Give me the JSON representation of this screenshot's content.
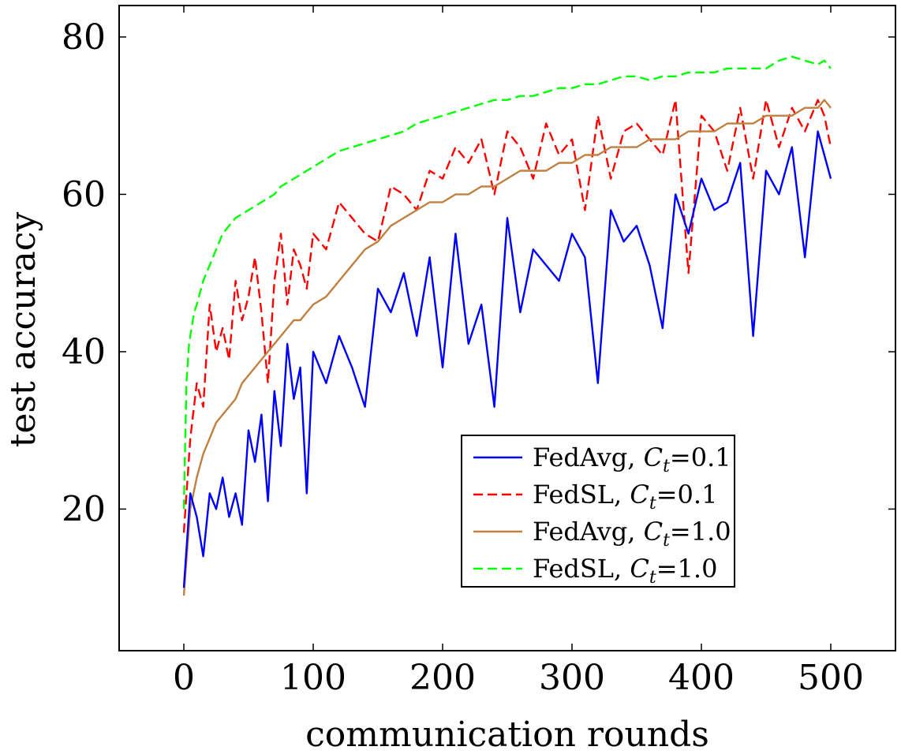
{
  "chart_data": {
    "type": "line",
    "title": "",
    "xlabel": "communication rounds",
    "ylabel": "test accuracy",
    "xlim": [
      -50,
      550
    ],
    "ylim": [
      2,
      84
    ],
    "xticks": [
      0,
      100,
      200,
      300,
      400,
      500
    ],
    "yticks": [
      20,
      40,
      60,
      80
    ],
    "legend_position": "bottom-right",
    "series": [
      {
        "name": "FedAvg, C_t=0.1",
        "name_prefix": "FedAvg, ",
        "name_value": "=0.1",
        "color": "#0000ff",
        "style": "solid",
        "x": [
          0,
          5,
          10,
          15,
          20,
          25,
          30,
          35,
          40,
          45,
          50,
          55,
          60,
          65,
          70,
          75,
          80,
          85,
          90,
          95,
          100,
          110,
          120,
          130,
          140,
          150,
          160,
          170,
          180,
          190,
          200,
          210,
          220,
          230,
          240,
          250,
          260,
          270,
          280,
          290,
          300,
          310,
          320,
          330,
          340,
          350,
          360,
          370,
          380,
          390,
          400,
          410,
          420,
          430,
          440,
          450,
          460,
          470,
          480,
          490,
          495,
          500
        ],
        "values": [
          10,
          22,
          19,
          14,
          22,
          20,
          24,
          19,
          22,
          18,
          30,
          26,
          32,
          21,
          35,
          28,
          41,
          34,
          38,
          22,
          40,
          36,
          42,
          38,
          33,
          48,
          45,
          50,
          42,
          52,
          38,
          55,
          41,
          46,
          33,
          57,
          45,
          53,
          51,
          49,
          55,
          52,
          36,
          58,
          54,
          56,
          51,
          43,
          60,
          55,
          62,
          58,
          59,
          64,
          42,
          63,
          60,
          66,
          52,
          68,
          65,
          62
        ]
      },
      {
        "name": "FedSL, C_t=0.1",
        "name_prefix": "FedSL, ",
        "name_value": "=0.1",
        "color": "#ff0000",
        "style": "dashed",
        "x": [
          0,
          5,
          10,
          15,
          20,
          25,
          30,
          35,
          40,
          45,
          50,
          55,
          60,
          65,
          70,
          75,
          80,
          85,
          90,
          95,
          100,
          110,
          120,
          130,
          140,
          150,
          160,
          170,
          180,
          190,
          200,
          210,
          220,
          230,
          240,
          250,
          260,
          270,
          280,
          290,
          300,
          310,
          320,
          330,
          340,
          350,
          360,
          370,
          380,
          390,
          400,
          410,
          420,
          430,
          440,
          450,
          460,
          470,
          480,
          490,
          495,
          500
        ],
        "values": [
          17,
          29,
          36,
          33,
          46,
          40,
          43,
          39,
          49,
          44,
          47,
          52,
          45,
          36,
          49,
          55,
          46,
          53,
          51,
          48,
          55,
          53,
          59,
          57,
          55,
          54,
          61,
          60,
          58,
          63,
          62,
          66,
          64,
          67,
          60,
          68,
          66,
          62,
          69,
          65,
          67,
          58,
          70,
          62,
          68,
          69,
          67,
          65,
          72,
          50,
          70,
          68,
          63,
          71,
          62,
          72,
          66,
          71,
          68,
          72,
          70,
          66
        ]
      },
      {
        "name": "FedAvg, C_t=1.0",
        "name_prefix": "FedAvg, ",
        "name_value": "=1.0",
        "color": "#c08040",
        "style": "solid",
        "x": [
          0,
          5,
          10,
          15,
          20,
          25,
          30,
          35,
          40,
          45,
          50,
          55,
          60,
          65,
          70,
          75,
          80,
          85,
          90,
          95,
          100,
          110,
          120,
          130,
          140,
          150,
          160,
          170,
          180,
          190,
          200,
          210,
          220,
          230,
          240,
          250,
          260,
          270,
          280,
          290,
          300,
          310,
          320,
          330,
          340,
          350,
          360,
          370,
          380,
          390,
          400,
          410,
          420,
          430,
          440,
          450,
          460,
          470,
          480,
          490,
          495,
          500
        ],
        "values": [
          9,
          20,
          24,
          27,
          29,
          31,
          32,
          33,
          34,
          36,
          37,
          38,
          39,
          40,
          41,
          42,
          43,
          44,
          44,
          45,
          46,
          47,
          49,
          51,
          53,
          54,
          56,
          57,
          58,
          59,
          59,
          60,
          60,
          61,
          61,
          62,
          63,
          63,
          63,
          64,
          64,
          65,
          65,
          66,
          66,
          66,
          67,
          67,
          67,
          68,
          68,
          68,
          69,
          69,
          69,
          70,
          70,
          70,
          71,
          71,
          72,
          71
        ]
      },
      {
        "name": "FedSL, C_t=1.0",
        "name_prefix": "FedSL, ",
        "name_value": "=1.0",
        "color": "#00ff00",
        "style": "dashed",
        "x": [
          0,
          2,
          4,
          6,
          8,
          10,
          15,
          20,
          25,
          30,
          35,
          40,
          45,
          50,
          55,
          60,
          65,
          70,
          75,
          80,
          90,
          100,
          110,
          120,
          130,
          140,
          150,
          160,
          170,
          180,
          190,
          200,
          210,
          220,
          230,
          240,
          250,
          260,
          270,
          280,
          290,
          300,
          310,
          320,
          330,
          340,
          350,
          360,
          370,
          380,
          390,
          400,
          410,
          420,
          430,
          440,
          450,
          460,
          470,
          480,
          490,
          495,
          500
        ],
        "values": [
          20,
          36,
          41,
          43,
          45,
          46,
          49,
          51,
          53,
          55,
          56,
          57,
          57.5,
          58,
          58.5,
          59,
          59.5,
          60,
          61,
          61.5,
          62.5,
          63.5,
          64.5,
          65.5,
          66,
          66.5,
          67,
          67.5,
          68,
          69,
          69.5,
          70,
          70.5,
          71,
          71.5,
          72,
          72,
          72.5,
          72.5,
          73,
          73.5,
          73.5,
          74,
          74,
          74.5,
          75,
          75,
          74.5,
          75,
          75,
          75.5,
          75.5,
          75.5,
          76,
          76,
          76,
          76,
          77,
          77.5,
          77,
          76.5,
          77,
          76
        ]
      }
    ]
  }
}
